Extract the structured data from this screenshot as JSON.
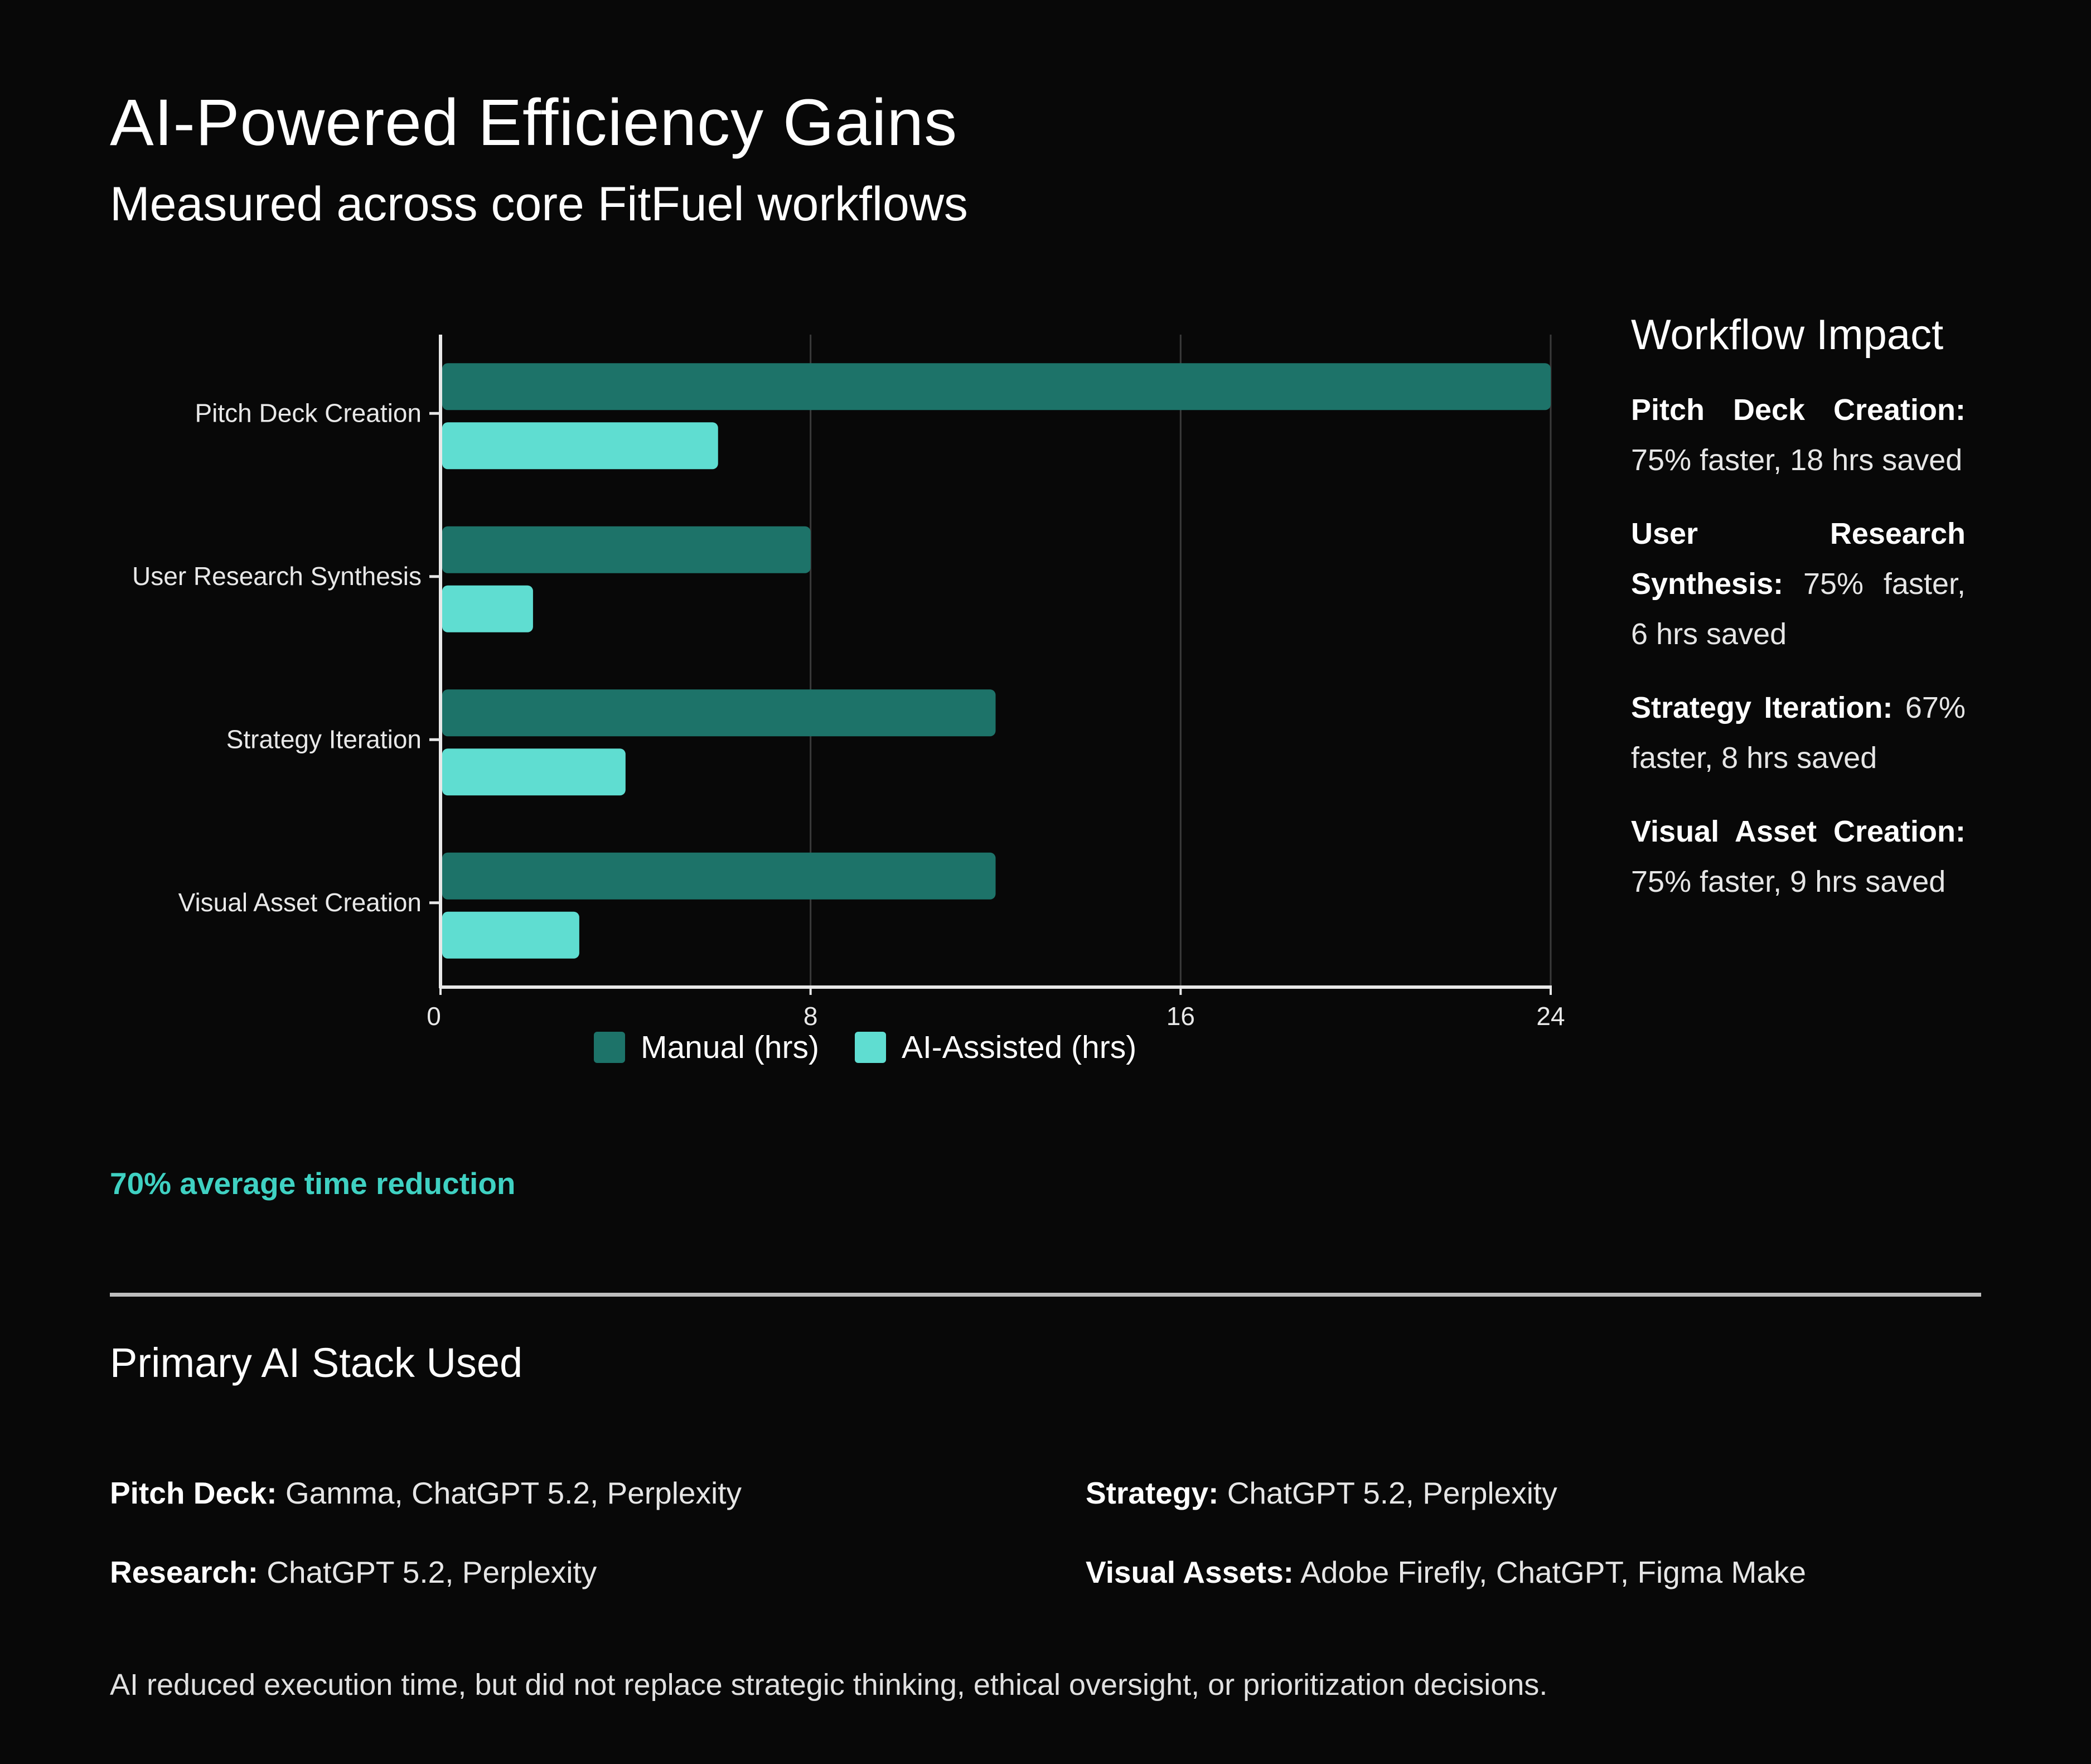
{
  "header": {
    "title": "AI-Powered Efficiency Gains",
    "subtitle": "Measured across core FitFuel workflows"
  },
  "colors": {
    "manual": "#1d7369",
    "ai": "#5fddd1",
    "accent": "#3fd1c2",
    "axis": "#e8e8e8",
    "grid": "#3a3a3a"
  },
  "chart_data": {
    "type": "bar",
    "orientation": "horizontal",
    "categories": [
      "Pitch Deck Creation",
      "User Research Synthesis",
      "Strategy Iteration",
      "Visual Asset Creation"
    ],
    "series": [
      {
        "name": "Manual (hrs)",
        "values": [
          24,
          8,
          12,
          12
        ]
      },
      {
        "name": "AI-Assisted (hrs)",
        "values": [
          6,
          2,
          4,
          3
        ]
      }
    ],
    "xticks": [
      "0",
      "8",
      "16",
      "24"
    ],
    "xlim": [
      0,
      24
    ],
    "grid": true,
    "legend_position": "bottom"
  },
  "impact": {
    "title": "Workflow Impact",
    "items": [
      {
        "label": "Pitch Deck Creation:",
        "text": "75% faster, 18 hrs saved"
      },
      {
        "label": "User Research Synthesis:",
        "text": "75% faster, 6 hrs saved"
      },
      {
        "label": "Strategy Iteration:",
        "text": "67% faster, 8 hrs saved"
      },
      {
        "label": "Visual Asset Creation:",
        "text": "75% faster, 9 hrs saved"
      }
    ]
  },
  "highlight": "70% average time reduction",
  "stack": {
    "title": "Primary AI Stack Used",
    "items": [
      {
        "label": "Pitch Deck:",
        "text": "Gamma, ChatGPT 5.2, Perplexity"
      },
      {
        "label": "Strategy:",
        "text": "ChatGPT 5.2, Perplexity"
      },
      {
        "label": "Research:",
        "text": "ChatGPT 5.2, Perplexity"
      },
      {
        "label": "Visual Assets:",
        "text": "Adobe Firefly, ChatGPT, Figma Make"
      }
    ]
  },
  "footnote": "AI reduced execution time, but did not replace strategic thinking, ethical oversight, or prioritization decisions."
}
